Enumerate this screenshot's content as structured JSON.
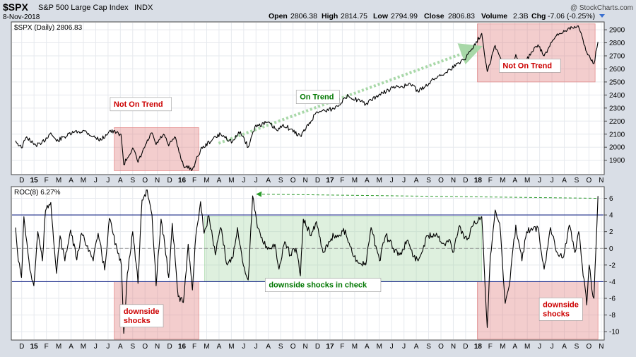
{
  "header": {
    "symbol": "$SPX",
    "description": "S&P 500 Large Cap Index",
    "exchange": "INDX",
    "date": "8-Nov-2018",
    "copyright": "@ StockCharts.com",
    "quote": {
      "open_label": "Open",
      "open": "2806.38",
      "high_label": "High",
      "high": "2814.75",
      "low_label": "Low",
      "low": "2794.99",
      "close_label": "Close",
      "close": "2806.83",
      "volume_label": "Volume",
      "volume": "2.3B",
      "chg_label": "Chg",
      "chg": "-7.06 (-0.25%)"
    }
  },
  "chart_data": [
    {
      "type": "line",
      "panel": "price",
      "series_label": "$SPX (Daily) 2806.83",
      "ylim": [
        1790,
        2960
      ],
      "y_ticks": [
        1900,
        2000,
        2100,
        2200,
        2300,
        2400,
        2500,
        2600,
        2700,
        2800,
        2900
      ],
      "x_range": [
        "2014-12-01",
        "2018-11-08"
      ],
      "x_ticks": [
        "D",
        "15",
        "F",
        "M",
        "A",
        "M",
        "J",
        "J",
        "A",
        "S",
        "O",
        "N",
        "D",
        "16",
        "F",
        "M",
        "A",
        "M",
        "J",
        "J",
        "A",
        "S",
        "O",
        "N",
        "D",
        "17",
        "F",
        "M",
        "A",
        "M",
        "J",
        "J",
        "A",
        "S",
        "O",
        "N",
        "D",
        "18",
        "F",
        "M",
        "A",
        "M",
        "J",
        "J",
        "A",
        "S",
        "O",
        "N"
      ],
      "bold_ticks": [
        "15",
        "16",
        "17",
        "18"
      ],
      "series": [
        {
          "color": "#000000",
          "points": [
            [
              "2014-12-01",
              2050
            ],
            [
              "2014-12-16",
              1995
            ],
            [
              "2014-12-29",
              2080
            ],
            [
              "2015-01-16",
              2020
            ],
            [
              "2015-02-02",
              2020
            ],
            [
              "2015-02-25",
              2110
            ],
            [
              "2015-03-11",
              2045
            ],
            [
              "2015-03-31",
              2080
            ],
            [
              "2015-04-24",
              2115
            ],
            [
              "2015-05-20",
              2125
            ],
            [
              "2015-06-10",
              2080
            ],
            [
              "2015-06-29",
              2055
            ],
            [
              "2015-07-20",
              2125
            ],
            [
              "2015-08-18",
              2100
            ],
            [
              "2015-08-25",
              1867
            ],
            [
              "2015-09-16",
              1995
            ],
            [
              "2015-09-29",
              1885
            ],
            [
              "2015-10-20",
              2030
            ],
            [
              "2015-11-03",
              2110
            ],
            [
              "2015-11-13",
              2020
            ],
            [
              "2015-12-01",
              2100
            ],
            [
              "2015-12-14",
              2010
            ],
            [
              "2015-12-29",
              2080
            ],
            [
              "2016-01-20",
              1860
            ],
            [
              "2016-02-11",
              1830
            ],
            [
              "2016-03-01",
              1980
            ],
            [
              "2016-03-31",
              2060
            ],
            [
              "2016-04-20",
              2100
            ],
            [
              "2016-05-19",
              2040
            ],
            [
              "2016-06-08",
              2120
            ],
            [
              "2016-06-27",
              2000
            ],
            [
              "2016-07-14",
              2160
            ],
            [
              "2016-08-15",
              2190
            ],
            [
              "2016-09-09",
              2125
            ],
            [
              "2016-09-22",
              2175
            ],
            [
              "2016-11-04",
              2085
            ],
            [
              "2016-11-30",
              2200
            ],
            [
              "2016-12-13",
              2270
            ],
            [
              "2017-01-26",
              2295
            ],
            [
              "2017-03-01",
              2395
            ],
            [
              "2017-04-13",
              2330
            ],
            [
              "2017-05-15",
              2400
            ],
            [
              "2017-06-19",
              2455
            ],
            [
              "2017-08-07",
              2480
            ],
            [
              "2017-08-21",
              2425
            ],
            [
              "2017-10-02",
              2530
            ],
            [
              "2017-11-08",
              2595
            ],
            [
              "2017-12-18",
              2690
            ],
            [
              "2018-01-26",
              2872
            ],
            [
              "2018-02-08",
              2580
            ],
            [
              "2018-02-26",
              2780
            ],
            [
              "2018-03-23",
              2590
            ],
            [
              "2018-04-02",
              2580
            ],
            [
              "2018-04-18",
              2710
            ],
            [
              "2018-05-03",
              2630
            ],
            [
              "2018-06-12",
              2785
            ],
            [
              "2018-06-27",
              2700
            ],
            [
              "2018-07-25",
              2845
            ],
            [
              "2018-08-29",
              2915
            ],
            [
              "2018-09-20",
              2930
            ],
            [
              "2018-10-11",
              2728
            ],
            [
              "2018-10-29",
              2640
            ],
            [
              "2018-11-08",
              2806
            ]
          ]
        }
      ],
      "annotations": [
        {
          "text": "Not On Trend",
          "x": "2015-10-06",
          "y": 2330,
          "color": "#cc0000"
        },
        {
          "text": "On Trend",
          "x": "2016-12-17",
          "y": 2385,
          "color": "#007700"
        },
        {
          "text": "Not On Trend",
          "x": "2018-05-23",
          "y": 2625,
          "color": "#cc0000"
        }
      ],
      "shaded_regions": [
        {
          "x0": "2015-08-01",
          "x1": "2016-02-26",
          "y0": 1820,
          "y1": 2150,
          "color": "#e07b7b"
        },
        {
          "x0": "2018-01-15",
          "x1": "2018-11-01",
          "y0": 2500,
          "y1": 2945,
          "color": "#e07b7b"
        }
      ],
      "arrows": [
        {
          "x0": "2016-04-15",
          "y0": 2030,
          "x1": "2018-01-15",
          "y1": 2760,
          "color": "#a8d8a8"
        }
      ]
    },
    {
      "type": "line",
      "panel": "roc",
      "series_label": "ROC(8) 6.27%",
      "ylim": [
        -11,
        7.4
      ],
      "y_ticks": [
        -10,
        -8,
        -6,
        -4,
        -2,
        0,
        2,
        4,
        6
      ],
      "x_range": [
        "2014-12-01",
        "2018-11-08"
      ],
      "x_ticks": [
        "D",
        "15",
        "F",
        "M",
        "A",
        "M",
        "J",
        "J",
        "A",
        "S",
        "O",
        "N",
        "D",
        "16",
        "F",
        "M",
        "A",
        "M",
        "J",
        "J",
        "A",
        "S",
        "O",
        "N",
        "D",
        "17",
        "F",
        "M",
        "A",
        "M",
        "J",
        "J",
        "A",
        "S",
        "O",
        "N",
        "D",
        "18",
        "F",
        "M",
        "A",
        "M",
        "J",
        "J",
        "A",
        "S",
        "O",
        "N"
      ],
      "bold_ticks": [
        "15",
        "16",
        "17",
        "18"
      ],
      "reference_lines": [
        {
          "y": 4,
          "color": "#1c2c8a",
          "style": "solid"
        },
        {
          "y": -4,
          "color": "#1c2c8a",
          "style": "solid"
        },
        {
          "y": 0,
          "color": "#888888",
          "style": "dashed"
        }
      ],
      "series": [
        {
          "color": "#000000",
          "points": [
            [
              "2014-12-01",
              2.5
            ],
            [
              "2014-12-08",
              -1.5
            ],
            [
              "2014-12-16",
              -3.5
            ],
            [
              "2014-12-22",
              3.8
            ],
            [
              "2015-01-06",
              -2.6
            ],
            [
              "2015-01-16",
              -4.5
            ],
            [
              "2015-01-26",
              2.0
            ],
            [
              "2015-02-06",
              -1.5
            ],
            [
              "2015-02-13",
              4.5
            ],
            [
              "2015-02-25",
              5.5
            ],
            [
              "2015-03-11",
              -3.0
            ],
            [
              "2015-03-20",
              1.5
            ],
            [
              "2015-04-01",
              -1.5
            ],
            [
              "2015-04-15",
              2.2
            ],
            [
              "2015-04-30",
              -1.4
            ],
            [
              "2015-05-12",
              1.8
            ],
            [
              "2015-05-27",
              0.3
            ],
            [
              "2015-06-10",
              -1.5
            ],
            [
              "2015-06-22",
              1.8
            ],
            [
              "2015-07-08",
              -2.6
            ],
            [
              "2015-07-20",
              3.6
            ],
            [
              "2015-08-10",
              -0.6
            ],
            [
              "2015-08-19",
              -2.0
            ],
            [
              "2015-08-25",
              -10.2
            ],
            [
              "2015-09-03",
              -3.0
            ],
            [
              "2015-09-16",
              2.0
            ],
            [
              "2015-09-29",
              -4.2
            ],
            [
              "2015-10-09",
              5.8
            ],
            [
              "2015-10-22",
              7.0
            ],
            [
              "2015-11-03",
              4.0
            ],
            [
              "2015-11-13",
              -4.5
            ],
            [
              "2015-11-25",
              3.5
            ],
            [
              "2015-12-04",
              0.5
            ],
            [
              "2015-12-14",
              -3.5
            ],
            [
              "2015-12-23",
              3.0
            ],
            [
              "2016-01-07",
              -5.8
            ],
            [
              "2016-01-20",
              -6.5
            ],
            [
              "2016-02-01",
              0.5
            ],
            [
              "2016-02-11",
              -5.0
            ],
            [
              "2016-02-19",
              1.5
            ],
            [
              "2016-03-01",
              5.6
            ],
            [
              "2016-03-10",
              1.8
            ],
            [
              "2016-03-22",
              3.9
            ],
            [
              "2016-04-07",
              -0.8
            ],
            [
              "2016-04-20",
              2.5
            ],
            [
              "2016-05-06",
              -2.0
            ],
            [
              "2016-05-19",
              -1.2
            ],
            [
              "2016-06-01",
              2.5
            ],
            [
              "2016-06-13",
              -1.5
            ],
            [
              "2016-06-27",
              -3.8
            ],
            [
              "2016-07-08",
              6.3
            ],
            [
              "2016-07-20",
              2.5
            ],
            [
              "2016-08-05",
              0.5
            ],
            [
              "2016-08-22",
              0.0
            ],
            [
              "2016-09-02",
              0.5
            ],
            [
              "2016-09-12",
              -2.5
            ],
            [
              "2016-09-26",
              0.8
            ],
            [
              "2016-10-10",
              -0.8
            ],
            [
              "2016-10-24",
              0.0
            ],
            [
              "2016-11-04",
              -3.3
            ],
            [
              "2016-11-11",
              3.5
            ],
            [
              "2016-11-30",
              1.5
            ],
            [
              "2016-12-13",
              3.2
            ],
            [
              "2016-12-30",
              -0.5
            ],
            [
              "2017-01-13",
              0.8
            ],
            [
              "2017-01-26",
              1.5
            ],
            [
              "2017-02-10",
              1.5
            ],
            [
              "2017-02-22",
              2.2
            ],
            [
              "2017-03-10",
              -0.5
            ],
            [
              "2017-03-27",
              -1.8
            ],
            [
              "2017-04-13",
              -2.0
            ],
            [
              "2017-04-26",
              2.5
            ],
            [
              "2017-05-17",
              -1.5
            ],
            [
              "2017-06-02",
              1.6
            ],
            [
              "2017-06-20",
              0.0
            ],
            [
              "2017-07-06",
              -0.8
            ],
            [
              "2017-07-26",
              1.0
            ],
            [
              "2017-08-10",
              -1.0
            ],
            [
              "2017-08-21",
              -1.5
            ],
            [
              "2017-09-13",
              1.5
            ],
            [
              "2017-10-05",
              1.8
            ],
            [
              "2017-10-25",
              0.5
            ],
            [
              "2017-11-08",
              1.0
            ],
            [
              "2017-11-15",
              -0.5
            ],
            [
              "2017-11-29",
              2.5
            ],
            [
              "2017-12-20",
              1.0
            ],
            [
              "2018-01-05",
              2.8
            ],
            [
              "2018-01-26",
              3.8
            ],
            [
              "2018-02-01",
              -2.0
            ],
            [
              "2018-02-08",
              -9.5
            ],
            [
              "2018-02-15",
              -1.0
            ],
            [
              "2018-02-26",
              4.6
            ],
            [
              "2018-03-09",
              3.0
            ],
            [
              "2018-03-23",
              -6.6
            ],
            [
              "2018-04-02",
              -4.5
            ],
            [
              "2018-04-18",
              2.8
            ],
            [
              "2018-05-03",
              -1.5
            ],
            [
              "2018-05-15",
              2.0
            ],
            [
              "2018-06-12",
              2.5
            ],
            [
              "2018-06-27",
              -2.5
            ],
            [
              "2018-07-13",
              2.5
            ],
            [
              "2018-07-30",
              -0.5
            ],
            [
              "2018-08-15",
              -1.0
            ],
            [
              "2018-08-29",
              2.8
            ],
            [
              "2018-09-12",
              -0.5
            ],
            [
              "2018-09-21",
              2.0
            ],
            [
              "2018-10-11",
              -6.8
            ],
            [
              "2018-10-17",
              -2.0
            ],
            [
              "2018-10-24",
              -5.0
            ],
            [
              "2018-10-29",
              -6.0
            ],
            [
              "2018-11-08",
              6.27
            ]
          ]
        }
      ],
      "annotations": [
        {
          "text": "downside shocks",
          "x": "2015-10-08",
          "y": -8.1,
          "color": "#cc0000",
          "lines": [
            "downside",
            "shocks"
          ]
        },
        {
          "text": "downside shocks in check",
          "x": "2016-12-30",
          "y": -4.4,
          "color": "#007700"
        },
        {
          "text": "downside shocks",
          "x": "2018-08-08",
          "y": -7.3,
          "color": "#cc0000",
          "lines": [
            "downside",
            "shocks"
          ]
        }
      ],
      "shaded_regions": [
        {
          "x0": "2015-08-01",
          "x1": "2016-02-26",
          "y0": -10.9,
          "y1": -4.0,
          "color": "#e07b7b"
        },
        {
          "x0": "2016-03-11",
          "x1": "2018-01-26",
          "y0": -4.0,
          "y1": 3.8,
          "color": "#a8d8a8"
        },
        {
          "x0": "2018-01-15",
          "x1": "2018-11-08",
          "y0": -10.9,
          "y1": -4.0,
          "color": "#e07b7b"
        }
      ],
      "arrows": [
        {
          "x0": "2018-11-04",
          "y0": 6.0,
          "x1": "2016-07-20",
          "y1": 6.5,
          "color": "#2a9a2a",
          "dashed": true
        }
      ]
    }
  ]
}
